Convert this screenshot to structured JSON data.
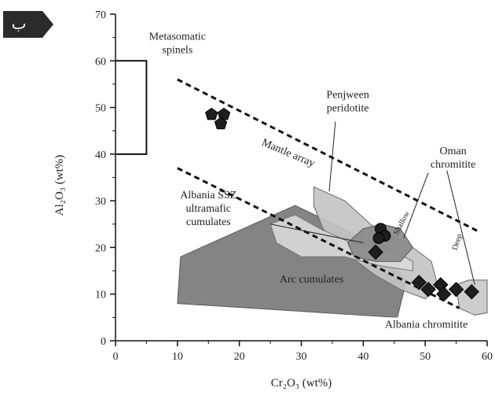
{
  "panel_label": "ب",
  "colors": {
    "arc": "#7a7a7a",
    "penjween": "#c4c4c4",
    "oman": "#8a8a8a",
    "albania_ssz": "#d8d8d8",
    "albania_chromitite": "#c9c9c9",
    "marker": "#1e1e1e",
    "badge": "#2b2b2b"
  },
  "chart_data": {
    "type": "scatter",
    "xlabel": "Cr₂O₃ (wt%)",
    "ylabel": "Al₂O₃ (wt%)",
    "xlim": [
      0,
      60
    ],
    "ylim": [
      0,
      70
    ],
    "x_ticks": [
      "0",
      "10",
      "20",
      "30",
      "40",
      "50",
      "60"
    ],
    "y_ticks": [
      "0",
      "10",
      "20",
      "30",
      "40",
      "50",
      "60",
      "70"
    ],
    "series": [
      {
        "marker": "pentagon",
        "points": [
          [
            15.5,
            48.5
          ],
          [
            17.5,
            48.5
          ],
          [
            17,
            46.5
          ]
        ]
      },
      {
        "marker": "circle",
        "points": [
          [
            42.8,
            24
          ],
          [
            43.5,
            22.5
          ],
          [
            42.5,
            22
          ]
        ]
      },
      {
        "marker": "diamond",
        "points": [
          [
            42,
            19
          ],
          [
            49,
            12.5
          ],
          [
            50.5,
            11
          ],
          [
            52.5,
            12
          ],
          [
            53,
            10
          ],
          [
            55,
            11
          ],
          [
            57.5,
            10.5
          ]
        ]
      }
    ],
    "mantle_array": {
      "upper": [
        [
          10,
          56
        ],
        [
          58.5,
          23.5
        ]
      ],
      "lower": [
        [
          10,
          37
        ],
        [
          55.5,
          7
        ]
      ]
    },
    "metasomatic_box": [
      [
        0,
        40
      ],
      [
        5,
        40
      ],
      [
        5,
        60
      ],
      [
        0,
        60
      ]
    ],
    "fields": [
      {
        "id": "arc",
        "points": [
          [
            10.5,
            18
          ],
          [
            29,
            29
          ],
          [
            40,
            22
          ],
          [
            47,
            13
          ],
          [
            45.5,
            5
          ],
          [
            10,
            8
          ]
        ]
      },
      {
        "id": "penjween",
        "points": [
          [
            32,
            33
          ],
          [
            37,
            30
          ],
          [
            42,
            24
          ],
          [
            47,
            21
          ],
          [
            51,
            17
          ],
          [
            52,
            12
          ],
          [
            50,
            9
          ],
          [
            46,
            11
          ],
          [
            42,
            14
          ],
          [
            38,
            18
          ],
          [
            33.5,
            24
          ],
          [
            32,
            29
          ]
        ]
      },
      {
        "id": "albania_ssz",
        "points": [
          [
            25,
            25
          ],
          [
            29,
            27
          ],
          [
            33,
            24
          ],
          [
            38,
            21
          ],
          [
            44,
            20
          ],
          [
            48,
            17
          ],
          [
            48,
            15
          ],
          [
            43,
            16
          ],
          [
            37,
            18
          ],
          [
            30,
            18
          ],
          [
            26,
            21
          ]
        ]
      },
      {
        "id": "oman",
        "points": [
          [
            37.5,
            21
          ],
          [
            40,
            24
          ],
          [
            43,
            25
          ],
          [
            46,
            24
          ],
          [
            48,
            20
          ],
          [
            46,
            17
          ],
          [
            42,
            17
          ],
          [
            38.5,
            18
          ]
        ]
      },
      {
        "id": "albania_chromitite",
        "points": [
          [
            55,
            12
          ],
          [
            57,
            13
          ],
          [
            60,
            13
          ],
          [
            60,
            6
          ],
          [
            58,
            5.5
          ],
          [
            55.5,
            7
          ]
        ]
      }
    ],
    "annotations": [
      {
        "id": "metasomatic",
        "lines": [
          "Metasomatic",
          "spinels"
        ],
        "x": 10,
        "y": 64.5
      },
      {
        "id": "mantle",
        "lines": [
          "Mantle array"
        ],
        "x": 23.5,
        "y": 42
      },
      {
        "id": "penjween",
        "lines": [
          "Penjween",
          "peridotite"
        ],
        "x": 37.5,
        "y": 52
      },
      {
        "id": "oman",
        "lines": [
          "Oman",
          "chromitite"
        ],
        "x": 54.5,
        "y": 40
      },
      {
        "id": "albania_ssz",
        "lines": [
          "Albania SSZ",
          "ultramafic",
          "cumulates"
        ],
        "x": 15,
        "y": 30.5
      },
      {
        "id": "arc",
        "lines": [
          "Arc cumulates"
        ],
        "x": 26.5,
        "y": 12.5
      },
      {
        "id": "albania_chr",
        "lines": [
          "Albania chromitite"
        ],
        "x": 43.5,
        "y": 2.8
      },
      {
        "id": "shallow",
        "lines": [
          "Shallow"
        ],
        "x": 46.5,
        "y": 25
      },
      {
        "id": "deep",
        "lines": [
          "Deep"
        ],
        "x": 55.5,
        "y": 21
      }
    ],
    "leaders": [
      {
        "from": [
          25,
          25
        ],
        "to": [
          40,
          21
        ]
      },
      {
        "from": [
          35.5,
          47
        ],
        "to": [
          34.5,
          32
        ]
      },
      {
        "from": [
          50.5,
          36
        ],
        "to": [
          46.5,
          22
        ]
      },
      {
        "from": [
          53.5,
          36.5
        ],
        "to": [
          58,
          12
        ]
      },
      {
        "from": [
          48.5,
          2.5
        ],
        "to": [
          56,
          2.5
        ]
      }
    ]
  }
}
